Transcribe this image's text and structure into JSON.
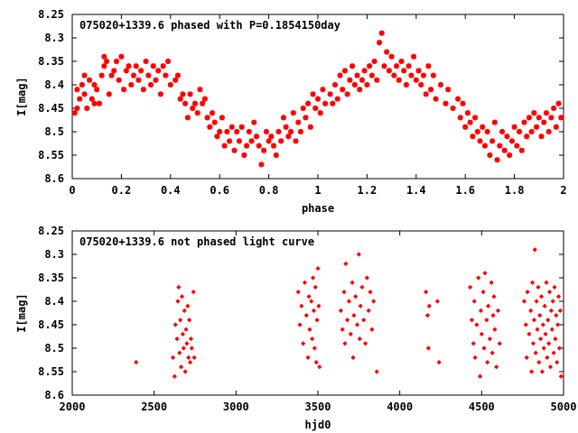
{
  "colors": {
    "points": "#ff0000",
    "axes": "#000000",
    "background": "#ffffff"
  },
  "chart_data": [
    {
      "type": "scatter",
      "title": "075020+1339.6 phased with P=0.1854150day",
      "xlabel": "phase",
      "ylabel": "I[mag]",
      "xlim": [
        0,
        2
      ],
      "ylim": [
        8.6,
        8.25
      ],
      "y_inverted": true,
      "marker": "cross",
      "xticks": [
        0,
        0.2,
        0.4,
        0.6,
        0.8,
        1,
        1.2,
        1.4,
        1.6,
        1.8,
        2
      ],
      "xtick_labels": [
        "0",
        "0.2",
        "0.4",
        "0.6",
        "0.8",
        "1",
        "1.2",
        "1.4",
        "1.6",
        "1.8",
        "2"
      ],
      "yticks": [
        8.25,
        8.3,
        8.35,
        8.4,
        8.45,
        8.5,
        8.55,
        8.6
      ],
      "ytick_labels": [
        "8.25",
        "8.3",
        "8.35",
        "8.4",
        "8.45",
        "8.5",
        "8.55",
        "8.6"
      ],
      "points": [
        [
          0.01,
          8.46
        ],
        [
          0.02,
          8.41
        ],
        [
          0.02,
          8.45
        ],
        [
          0.03,
          8.43
        ],
        [
          0.04,
          8.4
        ],
        [
          0.05,
          8.38
        ],
        [
          0.05,
          8.42
        ],
        [
          0.06,
          8.45
        ],
        [
          0.07,
          8.39
        ],
        [
          0.08,
          8.43
        ],
        [
          0.09,
          8.4
        ],
        [
          0.09,
          8.44
        ],
        [
          0.1,
          8.41
        ],
        [
          0.11,
          8.44
        ],
        [
          0.12,
          8.38
        ],
        [
          0.13,
          8.36
        ],
        [
          0.13,
          8.34
        ],
        [
          0.14,
          8.35
        ],
        [
          0.15,
          8.42
        ],
        [
          0.16,
          8.38
        ],
        [
          0.17,
          8.37
        ],
        [
          0.18,
          8.35
        ],
        [
          0.19,
          8.39
        ],
        [
          0.2,
          8.34
        ],
        [
          0.21,
          8.41
        ],
        [
          0.22,
          8.37
        ],
        [
          0.23,
          8.36
        ],
        [
          0.24,
          8.4
        ],
        [
          0.25,
          8.38
        ],
        [
          0.26,
          8.36
        ],
        [
          0.27,
          8.39
        ],
        [
          0.28,
          8.37
        ],
        [
          0.29,
          8.41
        ],
        [
          0.3,
          8.35
        ],
        [
          0.31,
          8.38
        ],
        [
          0.32,
          8.4
        ],
        [
          0.33,
          8.36
        ],
        [
          0.34,
          8.39
        ],
        [
          0.35,
          8.37
        ],
        [
          0.36,
          8.42
        ],
        [
          0.37,
          8.36
        ],
        [
          0.38,
          8.38
        ],
        [
          0.39,
          8.35
        ],
        [
          0.4,
          8.4
        ],
        [
          0.42,
          8.39
        ],
        [
          0.43,
          8.38
        ],
        [
          0.44,
          8.43
        ],
        [
          0.45,
          8.42
        ],
        [
          0.46,
          8.44
        ],
        [
          0.47,
          8.47
        ],
        [
          0.48,
          8.42
        ],
        [
          0.49,
          8.45
        ],
        [
          0.5,
          8.44
        ],
        [
          0.51,
          8.46
        ],
        [
          0.52,
          8.41
        ],
        [
          0.53,
          8.44
        ],
        [
          0.54,
          8.43
        ],
        [
          0.55,
          8.47
        ],
        [
          0.56,
          8.49
        ],
        [
          0.57,
          8.46
        ],
        [
          0.58,
          8.48
        ],
        [
          0.59,
          8.51
        ],
        [
          0.6,
          8.5
        ],
        [
          0.61,
          8.47
        ],
        [
          0.62,
          8.53
        ],
        [
          0.63,
          8.5
        ],
        [
          0.64,
          8.52
        ],
        [
          0.65,
          8.49
        ],
        [
          0.66,
          8.54
        ],
        [
          0.67,
          8.5
        ],
        [
          0.68,
          8.52
        ],
        [
          0.69,
          8.49
        ],
        [
          0.7,
          8.55
        ],
        [
          0.71,
          8.53
        ],
        [
          0.72,
          8.5
        ],
        [
          0.73,
          8.52
        ],
        [
          0.74,
          8.48
        ],
        [
          0.75,
          8.51
        ],
        [
          0.76,
          8.53
        ],
        [
          0.77,
          8.57
        ],
        [
          0.78,
          8.54
        ],
        [
          0.79,
          8.5
        ],
        [
          0.8,
          8.52
        ],
        [
          0.81,
          8.51
        ],
        [
          0.82,
          8.53
        ],
        [
          0.83,
          8.55
        ],
        [
          0.84,
          8.5
        ],
        [
          0.85,
          8.52
        ],
        [
          0.86,
          8.47
        ],
        [
          0.87,
          8.49
        ],
        [
          0.88,
          8.51
        ],
        [
          0.89,
          8.5
        ],
        [
          0.9,
          8.46
        ],
        [
          0.91,
          8.52
        ],
        [
          0.92,
          8.48
        ],
        [
          0.93,
          8.5
        ],
        [
          0.94,
          8.45
        ],
        [
          0.95,
          8.47
        ],
        [
          0.96,
          8.44
        ],
        [
          0.97,
          8.49
        ],
        [
          0.98,
          8.42
        ],
        [
          0.99,
          8.45
        ],
        [
          1.0,
          8.43
        ],
        [
          1.01,
          8.46
        ],
        [
          1.02,
          8.41
        ],
        [
          1.03,
          8.44
        ],
        [
          1.05,
          8.42
        ],
        [
          1.06,
          8.44
        ],
        [
          1.07,
          8.4
        ],
        [
          1.08,
          8.43
        ],
        [
          1.09,
          8.38
        ],
        [
          1.1,
          8.41
        ],
        [
          1.11,
          8.37
        ],
        [
          1.12,
          8.42
        ],
        [
          1.13,
          8.39
        ],
        [
          1.14,
          8.36
        ],
        [
          1.15,
          8.4
        ],
        [
          1.16,
          8.38
        ],
        [
          1.17,
          8.41
        ],
        [
          1.18,
          8.39
        ],
        [
          1.19,
          8.37
        ],
        [
          1.2,
          8.4
        ],
        [
          1.21,
          8.36
        ],
        [
          1.22,
          8.38
        ],
        [
          1.23,
          8.35
        ],
        [
          1.24,
          8.39
        ],
        [
          1.25,
          8.31
        ],
        [
          1.26,
          8.29
        ],
        [
          1.27,
          8.36
        ],
        [
          1.28,
          8.33
        ],
        [
          1.29,
          8.37
        ],
        [
          1.3,
          8.34
        ],
        [
          1.31,
          8.38
        ],
        [
          1.32,
          8.36
        ],
        [
          1.33,
          8.39
        ],
        [
          1.34,
          8.35
        ],
        [
          1.35,
          8.37
        ],
        [
          1.36,
          8.4
        ],
        [
          1.37,
          8.36
        ],
        [
          1.38,
          8.38
        ],
        [
          1.39,
          8.34
        ],
        [
          1.4,
          8.39
        ],
        [
          1.41,
          8.37
        ],
        [
          1.42,
          8.4
        ],
        [
          1.43,
          8.38
        ],
        [
          1.44,
          8.42
        ],
        [
          1.45,
          8.36
        ],
        [
          1.46,
          8.41
        ],
        [
          1.47,
          8.38
        ],
        [
          1.48,
          8.43
        ],
        [
          1.5,
          8.4
        ],
        [
          1.52,
          8.44
        ],
        [
          1.53,
          8.41
        ],
        [
          1.55,
          8.45
        ],
        [
          1.57,
          8.43
        ],
        [
          1.58,
          8.47
        ],
        [
          1.59,
          8.44
        ],
        [
          1.6,
          8.49
        ],
        [
          1.61,
          8.46
        ],
        [
          1.62,
          8.48
        ],
        [
          1.63,
          8.51
        ],
        [
          1.64,
          8.47
        ],
        [
          1.65,
          8.5
        ],
        [
          1.66,
          8.52
        ],
        [
          1.67,
          8.49
        ],
        [
          1.68,
          8.53
        ],
        [
          1.69,
          8.5
        ],
        [
          1.7,
          8.55
        ],
        [
          1.71,
          8.52
        ],
        [
          1.72,
          8.48
        ],
        [
          1.73,
          8.56
        ],
        [
          1.74,
          8.53
        ],
        [
          1.75,
          8.5
        ],
        [
          1.76,
          8.54
        ],
        [
          1.77,
          8.51
        ],
        [
          1.78,
          8.55
        ],
        [
          1.79,
          8.52
        ],
        [
          1.8,
          8.49
        ],
        [
          1.81,
          8.53
        ],
        [
          1.82,
          8.5
        ],
        [
          1.83,
          8.54
        ],
        [
          1.84,
          8.48
        ],
        [
          1.85,
          8.51
        ],
        [
          1.86,
          8.47
        ],
        [
          1.87,
          8.5
        ],
        [
          1.88,
          8.46
        ],
        [
          1.89,
          8.49
        ],
        [
          1.9,
          8.47
        ],
        [
          1.91,
          8.51
        ],
        [
          1.92,
          8.48
        ],
        [
          1.93,
          8.46
        ],
        [
          1.94,
          8.5
        ],
        [
          1.95,
          8.47
        ],
        [
          1.96,
          8.45
        ],
        [
          1.97,
          8.49
        ],
        [
          1.98,
          8.44
        ],
        [
          1.99,
          8.47
        ]
      ]
    },
    {
      "type": "scatter",
      "title": "075020+1339.6 not phased light curve",
      "xlabel": "hjd0",
      "ylabel": "I[mag]",
      "xlim": [
        2000,
        5000
      ],
      "ylim": [
        8.6,
        8.25
      ],
      "y_inverted": true,
      "marker": "diamond",
      "xticks": [
        2000,
        2500,
        3000,
        3500,
        4000,
        4500,
        5000
      ],
      "xtick_labels": [
        "2000",
        "2500",
        "3000",
        "3500",
        "4000",
        "4500",
        "5000"
      ],
      "yticks": [
        8.25,
        8.3,
        8.35,
        8.4,
        8.45,
        8.5,
        8.55,
        8.6
      ],
      "ytick_labels": [
        "8.25",
        "8.3",
        "8.35",
        "8.4",
        "8.45",
        "8.5",
        "8.55",
        "8.6"
      ],
      "points": [
        [
          2390,
          8.53
        ],
        [
          2615,
          8.52
        ],
        [
          2625,
          8.56
        ],
        [
          2630,
          8.45
        ],
        [
          2640,
          8.48
        ],
        [
          2645,
          8.4
        ],
        [
          2650,
          8.37
        ],
        [
          2655,
          8.51
        ],
        [
          2660,
          8.44
        ],
        [
          2665,
          8.54
        ],
        [
          2670,
          8.39
        ],
        [
          2675,
          8.47
        ],
        [
          2680,
          8.5
        ],
        [
          2685,
          8.42
        ],
        [
          2690,
          8.55
        ],
        [
          2695,
          8.46
        ],
        [
          2700,
          8.49
        ],
        [
          2705,
          8.41
        ],
        [
          2710,
          8.52
        ],
        [
          2715,
          8.44
        ],
        [
          2720,
          8.53
        ],
        [
          2725,
          8.48
        ],
        [
          2730,
          8.5
        ],
        [
          2740,
          8.38
        ],
        [
          2745,
          8.52
        ],
        [
          3380,
          8.38
        ],
        [
          3390,
          8.45
        ],
        [
          3400,
          8.41
        ],
        [
          3410,
          8.49
        ],
        [
          3420,
          8.36
        ],
        [
          3430,
          8.43
        ],
        [
          3440,
          8.52
        ],
        [
          3445,
          8.39
        ],
        [
          3450,
          8.46
        ],
        [
          3460,
          8.4
        ],
        [
          3465,
          8.48
        ],
        [
          3470,
          8.35
        ],
        [
          3475,
          8.42
        ],
        [
          3480,
          8.5
        ],
        [
          3485,
          8.37
        ],
        [
          3490,
          8.53
        ],
        [
          3495,
          8.44
        ],
        [
          3500,
          8.33
        ],
        [
          3505,
          8.41
        ],
        [
          3510,
          8.54
        ],
        [
          3640,
          8.42
        ],
        [
          3650,
          8.46
        ],
        [
          3660,
          8.38
        ],
        [
          3665,
          8.49
        ],
        [
          3670,
          8.32
        ],
        [
          3680,
          8.44
        ],
        [
          3690,
          8.4
        ],
        [
          3700,
          8.47
        ],
        [
          3710,
          8.36
        ],
        [
          3715,
          8.52
        ],
        [
          3720,
          8.43
        ],
        [
          3730,
          8.39
        ],
        [
          3740,
          8.45
        ],
        [
          3750,
          8.3
        ],
        [
          3755,
          8.48
        ],
        [
          3760,
          8.41
        ],
        [
          3770,
          8.37
        ],
        [
          3780,
          8.44
        ],
        [
          3790,
          8.49
        ],
        [
          3800,
          8.35
        ],
        [
          3810,
          8.42
        ],
        [
          3820,
          8.38
        ],
        [
          3830,
          8.46
        ],
        [
          3840,
          8.4
        ],
        [
          3860,
          8.55
        ],
        [
          4160,
          8.38
        ],
        [
          4170,
          8.43
        ],
        [
          4175,
          8.5
        ],
        [
          4180,
          8.41
        ],
        [
          4230,
          8.4
        ],
        [
          4240,
          8.53
        ],
        [
          4430,
          8.37
        ],
        [
          4440,
          8.44
        ],
        [
          4450,
          8.49
        ],
        [
          4455,
          8.4
        ],
        [
          4460,
          8.52
        ],
        [
          4470,
          8.45
        ],
        [
          4480,
          8.35
        ],
        [
          4490,
          8.56
        ],
        [
          4495,
          8.42
        ],
        [
          4500,
          8.47
        ],
        [
          4510,
          8.38
        ],
        [
          4515,
          8.5
        ],
        [
          4520,
          8.34
        ],
        [
          4530,
          8.44
        ],
        [
          4535,
          8.53
        ],
        [
          4540,
          8.41
        ],
        [
          4550,
          8.48
        ],
        [
          4560,
          8.36
        ],
        [
          4565,
          8.51
        ],
        [
          4570,
          8.43
        ],
        [
          4575,
          8.39
        ],
        [
          4580,
          8.46
        ],
        [
          4590,
          8.54
        ],
        [
          4600,
          8.42
        ],
        [
          4610,
          8.49
        ],
        [
          4760,
          8.4
        ],
        [
          4770,
          8.45
        ],
        [
          4775,
          8.52
        ],
        [
          4780,
          8.38
        ],
        [
          4790,
          8.47
        ],
        [
          4800,
          8.42
        ],
        [
          4805,
          8.55
        ],
        [
          4810,
          8.36
        ],
        [
          4815,
          8.49
        ],
        [
          4820,
          8.44
        ],
        [
          4825,
          8.29
        ],
        [
          4830,
          8.51
        ],
        [
          4835,
          8.4
        ],
        [
          4840,
          8.46
        ],
        [
          4845,
          8.37
        ],
        [
          4850,
          8.53
        ],
        [
          4855,
          8.43
        ],
        [
          4860,
          8.48
        ],
        [
          4865,
          8.39
        ],
        [
          4870,
          8.55
        ],
        [
          4875,
          8.45
        ],
        [
          4880,
          8.5
        ],
        [
          4885,
          8.41
        ],
        [
          4890,
          8.47
        ],
        [
          4895,
          8.36
        ],
        [
          4900,
          8.52
        ],
        [
          4905,
          8.44
        ],
        [
          4910,
          8.49
        ],
        [
          4915,
          8.38
        ],
        [
          4920,
          8.54
        ],
        [
          4925,
          8.42
        ],
        [
          4930,
          8.46
        ],
        [
          4935,
          8.4
        ],
        [
          4940,
          8.51
        ],
        [
          4945,
          8.37
        ],
        [
          4950,
          8.48
        ],
        [
          4955,
          8.43
        ],
        [
          4960,
          8.53
        ],
        [
          4965,
          8.45
        ],
        [
          4970,
          8.39
        ],
        [
          4975,
          8.5
        ],
        [
          4980,
          8.42
        ],
        [
          4985,
          8.56
        ]
      ]
    }
  ]
}
